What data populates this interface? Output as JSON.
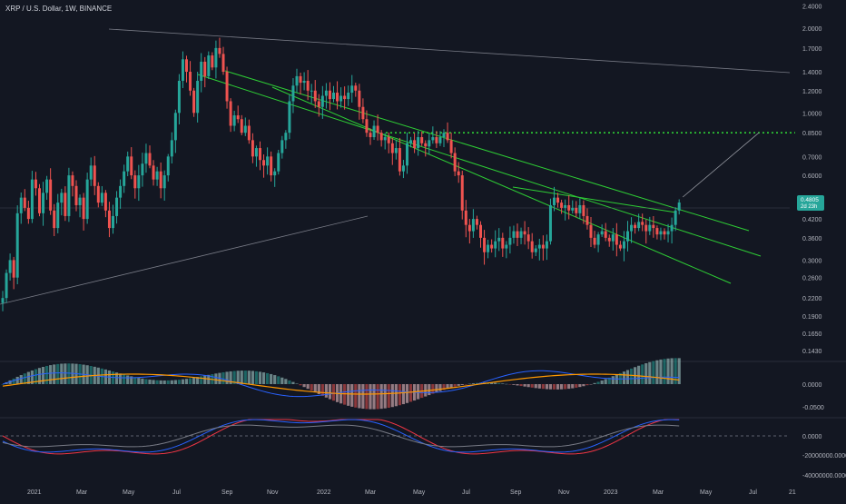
{
  "header": {
    "symbol_line": "XRP / U.S. Dollar, 1W, BINANCE"
  },
  "colors": {
    "background": "#131722",
    "up": "#26a69a",
    "down": "#ef5350",
    "trendline": "#2ece35",
    "target_dotted": "#2ece35",
    "grid": "#1e222d",
    "axis_text": "#b2b5be",
    "macd_line": "#2962ff",
    "signal_line": "#ff9800",
    "osc_red": "#f23645",
    "osc_blue": "#2962ff",
    "osc_gray": "#787b86"
  },
  "price_axis": {
    "scale": "log",
    "tick_labels": [
      "2.4000",
      "2.0000",
      "1.7000",
      "1.4000",
      "1.2000",
      "1.0000",
      "0.8500",
      "0.7000",
      "0.6000",
      "0.5000",
      "0.4200",
      "0.3600",
      "0.3000",
      "0.2600",
      "0.2200",
      "0.1900",
      "0.1650",
      "0.1430"
    ],
    "last_price_label": "0.4805",
    "last_price_sub": "2d 23h",
    "last_price": 0.4805
  },
  "macd_axis": {
    "tick_labels": [
      "0.0000",
      "-0.0500"
    ]
  },
  "osc_axis": {
    "tick_labels": [
      "0.0000",
      "-20000000.0000",
      "-40000000.0000"
    ]
  },
  "time_axis": {
    "tick_labels": [
      "2021",
      "Mar",
      "May",
      "Jul",
      "Sep",
      "Nov",
      "2022",
      "Mar",
      "May",
      "Jul",
      "Sep",
      "Nov",
      "2023",
      "Mar",
      "May",
      "Jul",
      "21"
    ]
  },
  "chart_data": {
    "type": "candlestick",
    "timeframe": "1W",
    "y_scale": "log",
    "closes": [
      0.22,
      0.27,
      0.3,
      0.26,
      0.44,
      0.5,
      0.46,
      0.42,
      0.58,
      0.54,
      0.44,
      0.52,
      0.58,
      0.45,
      0.39,
      0.48,
      0.52,
      0.43,
      0.6,
      0.55,
      0.47,
      0.5,
      0.42,
      0.58,
      0.65,
      0.55,
      0.48,
      0.52,
      0.45,
      0.39,
      0.43,
      0.5,
      0.55,
      0.62,
      0.7,
      0.6,
      0.54,
      0.6,
      0.66,
      0.72,
      0.65,
      0.58,
      0.62,
      0.54,
      0.6,
      0.7,
      0.8,
      1.0,
      1.3,
      1.55,
      1.4,
      1.2,
      1.0,
      1.3,
      1.52,
      1.35,
      1.6,
      1.45,
      1.7,
      1.62,
      1.4,
      1.1,
      0.9,
      0.98,
      0.95,
      0.85,
      0.9,
      0.8,
      0.7,
      0.75,
      0.68,
      0.65,
      0.7,
      0.6,
      0.62,
      0.72,
      0.8,
      0.85,
      1.1,
      1.25,
      1.35,
      1.28,
      1.3,
      1.2,
      1.2,
      1.1,
      1.05,
      1.15,
      1.2,
      1.12,
      1.18,
      1.1,
      1.15,
      1.12,
      1.18,
      1.25,
      1.2,
      1.05,
      0.95,
      0.85,
      0.82,
      0.9,
      0.85,
      0.8,
      0.82,
      0.78,
      0.72,
      0.75,
      0.62,
      0.65,
      0.78,
      0.8,
      0.75,
      0.82,
      0.78,
      0.76,
      0.8,
      0.82,
      0.78,
      0.82,
      0.85,
      0.8,
      0.72,
      0.62,
      0.6,
      0.45,
      0.4,
      0.38,
      0.42,
      0.4,
      0.36,
      0.32,
      0.34,
      0.33,
      0.35,
      0.36,
      0.33,
      0.34,
      0.36,
      0.38,
      0.36,
      0.38,
      0.37,
      0.35,
      0.32,
      0.33,
      0.34,
      0.33,
      0.35,
      0.47,
      0.5,
      0.48,
      0.46,
      0.47,
      0.45,
      0.46,
      0.44,
      0.47,
      0.43,
      0.4,
      0.36,
      0.34,
      0.37,
      0.38,
      0.36,
      0.35,
      0.37,
      0.34,
      0.33,
      0.35,
      0.38,
      0.4,
      0.39,
      0.41,
      0.4,
      0.38,
      0.4,
      0.39,
      0.37,
      0.38,
      0.37,
      0.38,
      0.4,
      0.45,
      0.4805
    ],
    "last_price": 0.4805,
    "overlays": {
      "target_level": 0.85,
      "descending_trendlines": 3,
      "projection_line": "from last candle up to the 0.8500 level"
    },
    "indicators": [
      "MACD histogram with MACD and signal lines",
      "oscillator with three lines"
    ]
  }
}
